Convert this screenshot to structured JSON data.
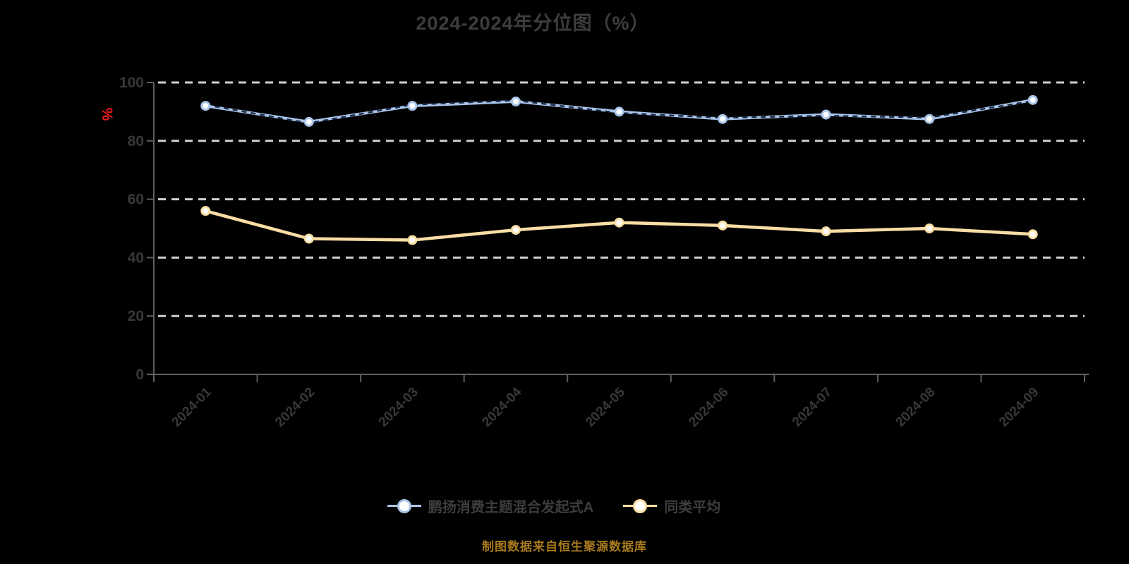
{
  "header": {
    "title": "2024-2024年分位图（%）"
  },
  "caption": {
    "text": "制图数据来自恒生聚源数据库"
  },
  "chart_data": {
    "type": "line",
    "title": "2024-2024年分位图（%）",
    "y_unit_label": "%",
    "y_unit_label_color": "#ee1c1c",
    "categories": [
      "2024-01",
      "2024-02",
      "2024-03",
      "2024-04",
      "2024-05",
      "2024-06",
      "2024-07",
      "2024-08",
      "2024-09"
    ],
    "y_ticks": [
      0,
      20,
      40,
      60,
      80,
      100
    ],
    "ylim": [
      0,
      100
    ],
    "grid": "horizontal-dashed",
    "legend_position": "bottom",
    "series": [
      {
        "name": "鹏扬消费主题混合发起式A",
        "color": "#a9c4e8",
        "overlay_dashed_color": "#1a2946",
        "marker": "circle-white-fill",
        "values": [
          92,
          86.5,
          92,
          93.5,
          90,
          87.5,
          89,
          87.5,
          94
        ]
      },
      {
        "name": "同类平均",
        "color": "#fadda4",
        "marker": "circle-white-fill",
        "values": [
          56,
          46.5,
          46,
          49.5,
          52,
          51,
          49,
          50,
          48
        ]
      }
    ],
    "colors": {
      "background": "#000000",
      "gridline": "#cfcfcf",
      "axis": "#5f5f5f",
      "tick_label": "#383838",
      "title": "#3d3d3d",
      "caption": "#a87a1e"
    }
  }
}
